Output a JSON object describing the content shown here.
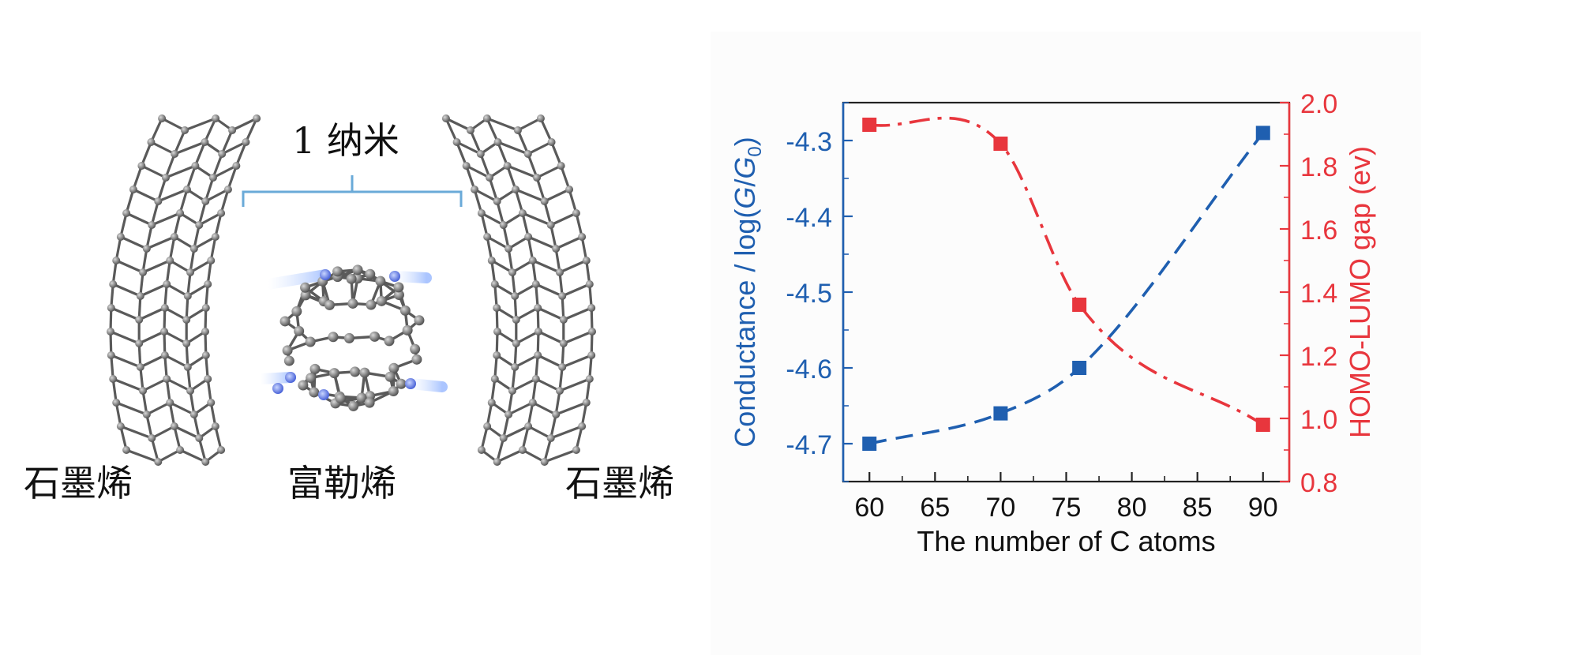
{
  "figure": {
    "scale_label": "1 纳米",
    "left_electrode_label": "石墨烯",
    "molecule_label": "富勒烯",
    "right_electrode_label": "石墨烯"
  },
  "chart_data": {
    "type": "line",
    "xlabel": "The number of C atoms",
    "ylabel_left_prefix": "Conductance / log(",
    "ylabel_left_sym1": "G",
    "ylabel_left_slash": "/",
    "ylabel_left_sym2": "G",
    "ylabel_left_sub": "0",
    "ylabel_left_suffix": ")",
    "ylabel_right": "HOMO-LUMO gap (ev)",
    "xlim": [
      58,
      92
    ],
    "x_ticks": [
      "60",
      "65",
      "70",
      "75",
      "80",
      "85",
      "90"
    ],
    "ylim_left": [
      -4.75,
      -4.25
    ],
    "y_ticks_left": [
      "-4.3",
      "-4.4",
      "-4.5",
      "-4.6",
      "-4.7"
    ],
    "ylim_right": [
      0.8,
      2.0
    ],
    "y_ticks_right": [
      "2.0",
      "1.8",
      "1.6",
      "1.4",
      "1.2",
      "1.0",
      "0.8"
    ],
    "grid": false,
    "series": [
      {
        "axis": "left",
        "color": "#1f5fb0",
        "line_style": "dashed",
        "marker": "square",
        "x": [
          60,
          70,
          76,
          90
        ],
        "y": [
          -4.7,
          -4.66,
          -4.6,
          -4.29
        ]
      },
      {
        "axis": "right",
        "color": "#e8363d",
        "line_style": "dash-dot",
        "marker": "square",
        "x": [
          60,
          70,
          76,
          90
        ],
        "y": [
          1.93,
          1.87,
          1.36,
          0.98
        ]
      }
    ]
  },
  "colors": {
    "left_axis": "#1f5fb0",
    "right_axis": "#e8363d",
    "bracket": "#6aaad8",
    "bond": "#5a5a5a",
    "atom": "#8a8a8a"
  }
}
